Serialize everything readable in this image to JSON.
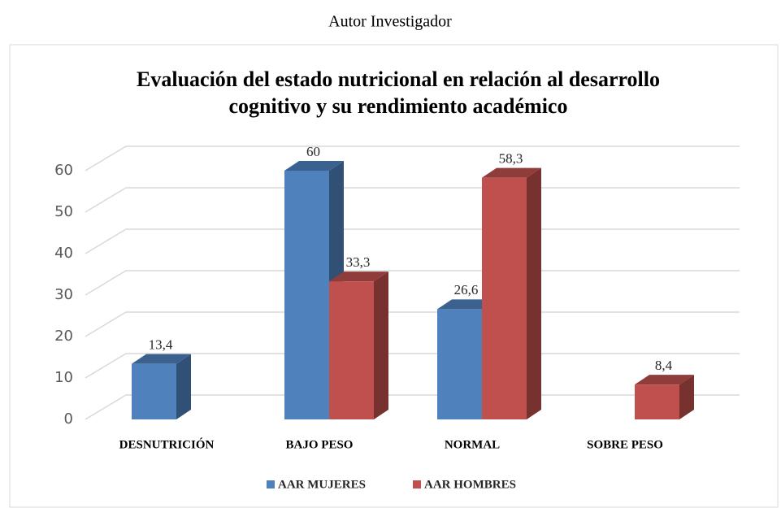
{
  "caption": "Autor Investigador",
  "chart_data": {
    "type": "bar3d",
    "title": [
      "Evaluación del estado nutricional en relación al desarrollo",
      "cognitivo y su rendimiento académico"
    ],
    "categories": [
      "DESNUTRICIÓN",
      "BAJO PESO",
      "NORMAL",
      "SOBRE PESO"
    ],
    "series": [
      {
        "name": "AAR MUJERES",
        "color": "#4f81bd",
        "values": [
          13.4,
          60,
          26.6,
          null
        ],
        "value_labels": [
          "13,4",
          "60",
          "26,6",
          null
        ]
      },
      {
        "name": "AAR HOMBRES",
        "color": "#c0504d",
        "values": [
          null,
          33.3,
          58.3,
          8.4
        ],
        "value_labels": [
          null,
          "33,3",
          "58,3",
          "8,4"
        ]
      }
    ],
    "ylim": [
      0,
      60
    ],
    "yticks": [
      0,
      10,
      20,
      30,
      40,
      50,
      60
    ],
    "grid": true,
    "legend": "bottom"
  }
}
